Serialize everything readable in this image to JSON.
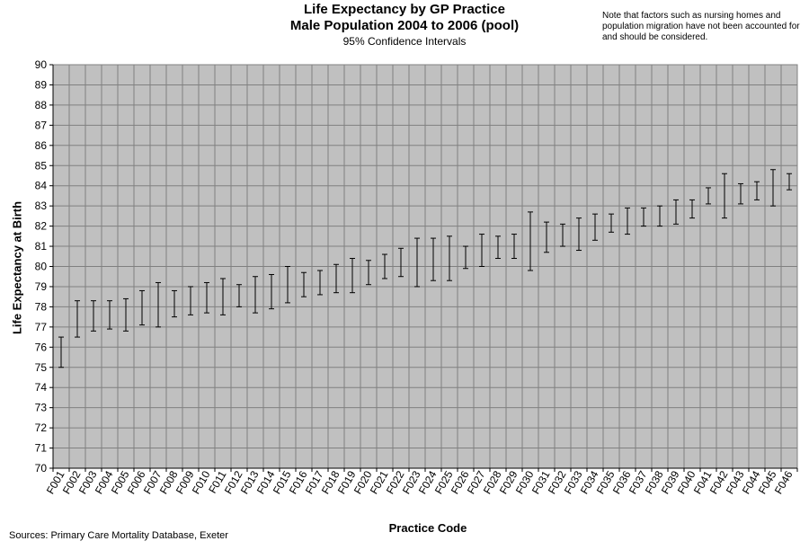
{
  "title": {
    "line1": "Life Expectancy by GP Practice",
    "line2": "Male Population 2004 to 2006 (pool)",
    "subtitle": "95% Confidence  Intervals"
  },
  "note": "Note that factors such as nursing homes and population migration  have not been accounted for and should be considered.",
  "source": "Sources: Primary Care Mortality Database, Exeter",
  "chart_data": {
    "type": "errorbar",
    "title": "Life Expectancy by GP Practice Male Population 2004 to 2006 (pool)",
    "subtitle": "95% Confidence  Intervals",
    "xlabel": "Practice Code",
    "ylabel": "Life Expectancy at Birth",
    "ylim": [
      70,
      90
    ],
    "ytick_step": 1,
    "grid": true,
    "colors": {
      "plot_background": "#c0c0c0",
      "grid": "#808080",
      "bars": "#000000"
    },
    "categories": [
      "F001",
      "F002",
      "F003",
      "F004",
      "F005",
      "F006",
      "F007",
      "F008",
      "F009",
      "F010",
      "F011",
      "F012",
      "F013",
      "F014",
      "F015",
      "F016",
      "F017",
      "F018",
      "F019",
      "F020",
      "F021",
      "F022",
      "F023",
      "F024",
      "F025",
      "F026",
      "F027",
      "F028",
      "F029",
      "F030",
      "F031",
      "F032",
      "F033",
      "F034",
      "F035",
      "F036",
      "F037",
      "F038",
      "F039",
      "F040",
      "F041",
      "F042",
      "F043",
      "F044",
      "F045",
      "F046"
    ],
    "lower": [
      75.0,
      76.5,
      76.8,
      76.9,
      76.8,
      77.1,
      77.0,
      77.5,
      77.6,
      77.7,
      77.6,
      78.0,
      77.7,
      77.9,
      78.2,
      78.5,
      78.6,
      78.7,
      78.7,
      79.1,
      79.4,
      79.5,
      79.0,
      79.3,
      79.3,
      79.9,
      80.0,
      80.4,
      80.4,
      79.8,
      80.7,
      81.0,
      80.8,
      81.3,
      81.7,
      81.6,
      82.0,
      82.0,
      82.1,
      82.4,
      83.1,
      82.4,
      83.1,
      83.3,
      83.0,
      83.8
    ],
    "upper": [
      76.5,
      78.3,
      78.3,
      78.3,
      78.4,
      78.8,
      79.2,
      78.8,
      79.0,
      79.2,
      79.4,
      79.1,
      79.5,
      79.6,
      80.0,
      79.7,
      79.8,
      80.1,
      80.4,
      80.3,
      80.6,
      80.9,
      81.4,
      81.4,
      81.5,
      81.0,
      81.6,
      81.5,
      81.6,
      82.7,
      82.2,
      82.1,
      82.4,
      82.6,
      82.6,
      82.9,
      82.9,
      83.0,
      83.3,
      83.3,
      83.9,
      84.6,
      84.1,
      84.2,
      84.8,
      84.6
    ]
  }
}
